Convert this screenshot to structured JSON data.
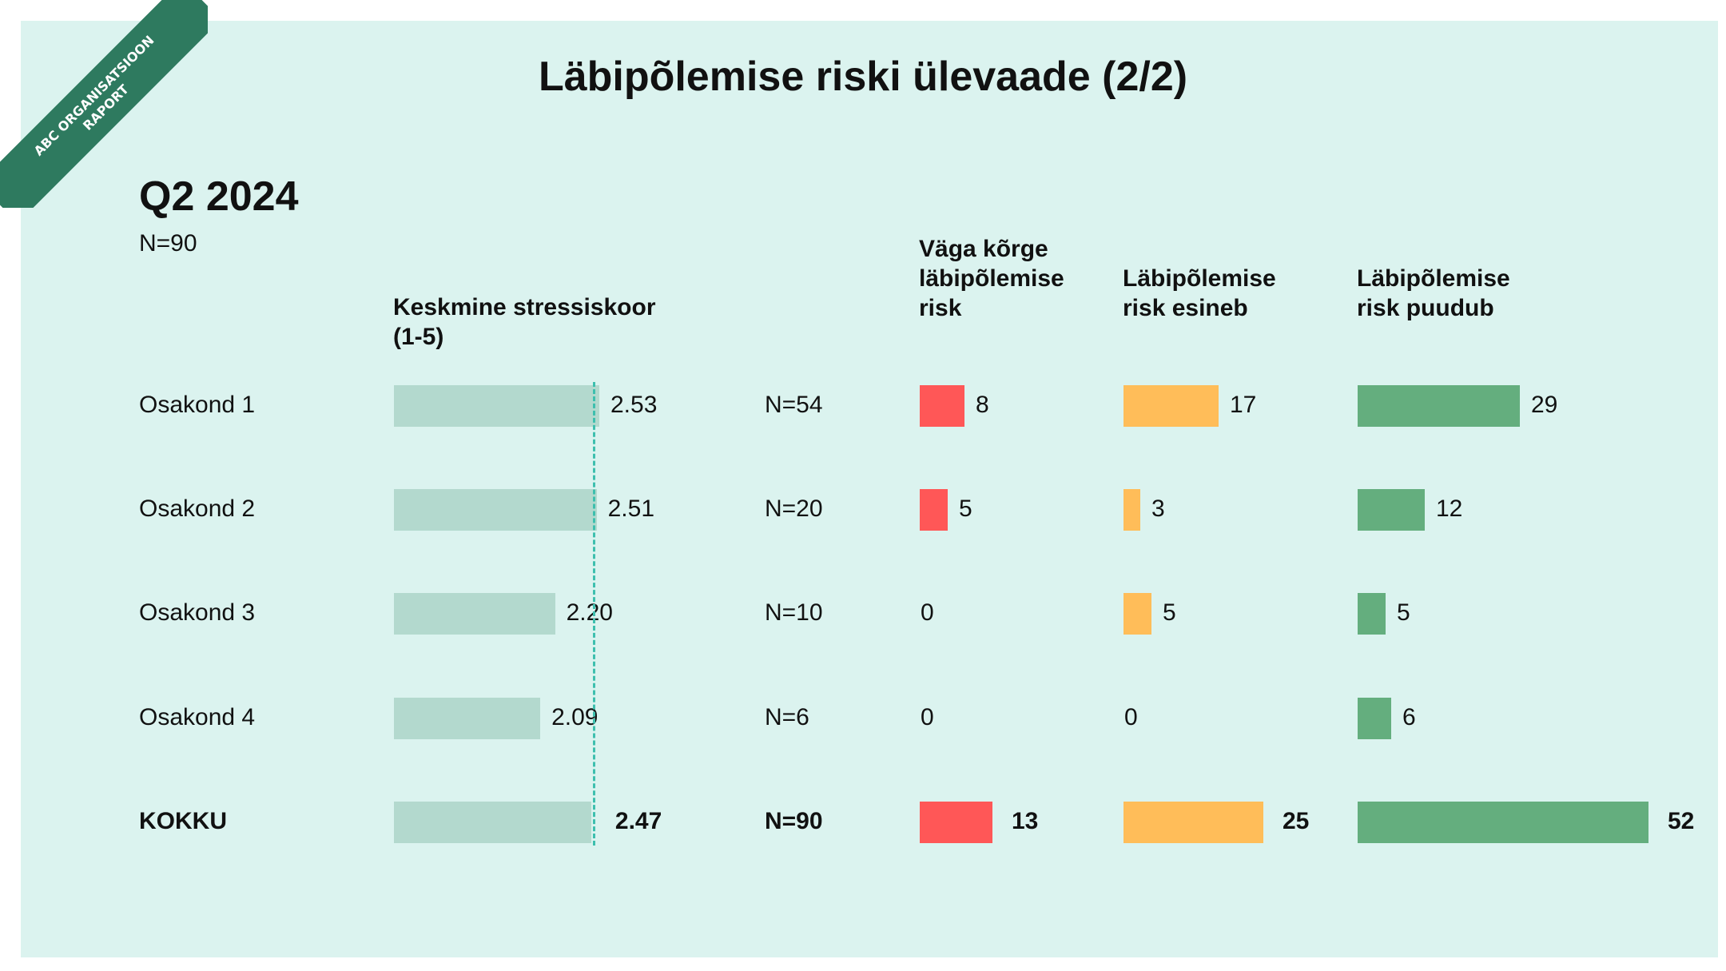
{
  "ribbon": {
    "line1": "ABC ORGANISATSIOON",
    "line2": "RAPORT"
  },
  "title": "Läbipõlemise riski ülevaade (2/2)",
  "period": "Q2 2024",
  "n_total": "N=90",
  "headers": {
    "stress": [
      "Keskmine stressiskoor",
      "(1-5)"
    ],
    "very_high": [
      "Väga kõrge",
      "läbipõlemise",
      "risk"
    ],
    "present": [
      "Läbipõlemise",
      "risk esineb"
    ],
    "absent": [
      "Läbipõlemise",
      "risk puudub"
    ]
  },
  "colors": {
    "background": "#dbf3ef",
    "stress_bar": "#b3d9ce",
    "very_high": "#ff5757",
    "present": "#ffbd59",
    "absent": "#64ae7e",
    "ribbon": "#2e7a5f",
    "reference_line": "#3dbfae"
  },
  "chart_data": {
    "type": "bar",
    "categories": [
      "Osakond 1",
      "Osakond 2",
      "Osakond 3",
      "Osakond 4",
      "KOKKU"
    ],
    "n_labels": [
      "N=54",
      "N=20",
      "N=10",
      "N=6",
      "N=90"
    ],
    "series": [
      {
        "name": "Keskmine stressiskoor (1-5)",
        "values": [
          2.53,
          2.51,
          2.2,
          2.09,
          2.47
        ],
        "labels": [
          "2.53",
          "2.51",
          "2.20",
          "2.09",
          "2.47"
        ],
        "xlim": [
          1,
          3.5
        ]
      },
      {
        "name": "Väga kõrge läbipõlemise risk",
        "values": [
          8,
          5,
          0,
          0,
          13
        ],
        "labels": [
          "8",
          "5",
          "0",
          "0",
          "13"
        ]
      },
      {
        "name": "Läbipõlemise risk esineb",
        "values": [
          17,
          3,
          5,
          0,
          25
        ],
        "labels": [
          "17",
          "3",
          "5",
          "0",
          "25"
        ]
      },
      {
        "name": "Läbipõlemise risk puudub",
        "values": [
          29,
          12,
          5,
          6,
          52
        ],
        "labels": [
          "29",
          "12",
          "5",
          "6",
          "52"
        ]
      }
    ],
    "reference_line": {
      "value": 2.47
    },
    "legend": "none",
    "grid": false
  }
}
